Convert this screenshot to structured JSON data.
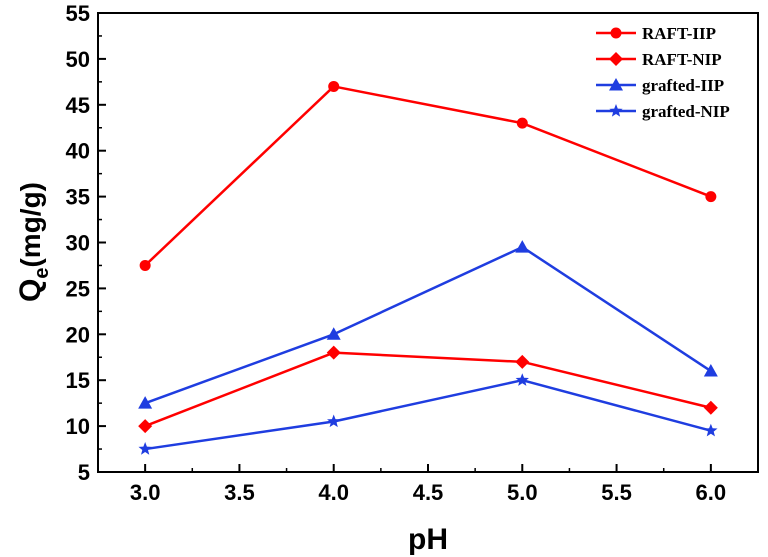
{
  "chart_data": {
    "type": "line",
    "title": "",
    "xlabel": "pH",
    "ylabel_main": "Q",
    "ylabel_sub": "e",
    "ylabel_unit": "(mg/g)",
    "xlim": [
      2.75,
      6.25
    ],
    "ylim": [
      5,
      55
    ],
    "x_ticks": [
      3.0,
      3.5,
      4.0,
      4.5,
      5.0,
      5.5,
      6.0
    ],
    "x_tick_labels": [
      "3.0",
      "3.5",
      "4.0",
      "4.5",
      "5.0",
      "5.5",
      "6.0"
    ],
    "y_ticks": [
      5,
      10,
      15,
      20,
      25,
      30,
      35,
      40,
      45,
      50,
      55
    ],
    "y_tick_labels": [
      "5",
      "10",
      "15",
      "20",
      "25",
      "30",
      "35",
      "40",
      "45",
      "50",
      "55"
    ],
    "grid": false,
    "legend_position": "top-right",
    "x": [
      3.0,
      4.0,
      5.0,
      6.0
    ],
    "series": [
      {
        "name": "RAFT-IIP",
        "color": "#ff0000",
        "marker": "circle",
        "values": [
          27.5,
          47,
          43,
          35
        ]
      },
      {
        "name": "RAFT-NIP",
        "color": "#ff0000",
        "marker": "diamond",
        "values": [
          10,
          18,
          17,
          12
        ]
      },
      {
        "name": "grafted-IIP",
        "color": "#1f3de0",
        "marker": "triangle",
        "values": [
          12.5,
          20,
          29.5,
          16
        ]
      },
      {
        "name": "grafted-NIP",
        "color": "#1f3de0",
        "marker": "star",
        "values": [
          7.5,
          10.5,
          15,
          9.5
        ]
      }
    ]
  }
}
